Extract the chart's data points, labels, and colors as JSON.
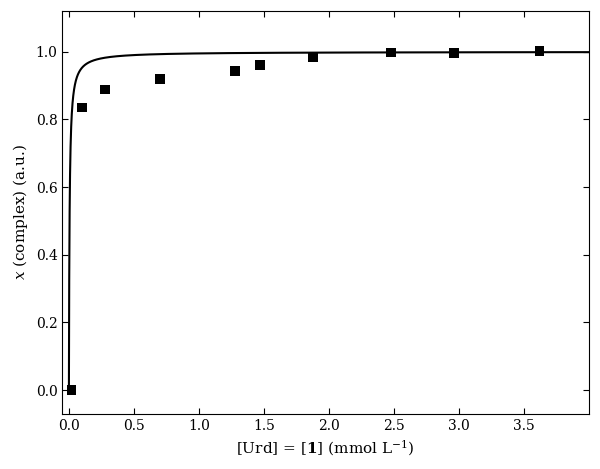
{
  "scatter_x": [
    0.02,
    0.1,
    0.28,
    0.7,
    1.28,
    1.47,
    1.88,
    2.48,
    2.96,
    3.62
  ],
  "scatter_y": [
    0.0,
    0.835,
    0.888,
    0.92,
    0.944,
    0.96,
    0.983,
    0.998,
    0.997,
    1.003
  ],
  "K": 200.0,
  "xlabel": "[Urd] = [\\mathbf{1}] (mmol L$^{-1}$)",
  "ylabel": "$x$ (complex) (a.u.)",
  "xlim": [
    -0.05,
    4.0
  ],
  "ylim": [
    -0.07,
    1.12
  ],
  "yticks": [
    0.0,
    0.2,
    0.4,
    0.6,
    0.8,
    1.0
  ],
  "xticks": [
    0,
    0.5,
    1.0,
    1.5,
    2.0,
    2.5,
    3.0,
    3.5
  ],
  "marker_color": "#000000",
  "line_color": "#000000",
  "background_color": "#ffffff",
  "marker_size": 7,
  "line_width": 1.5
}
